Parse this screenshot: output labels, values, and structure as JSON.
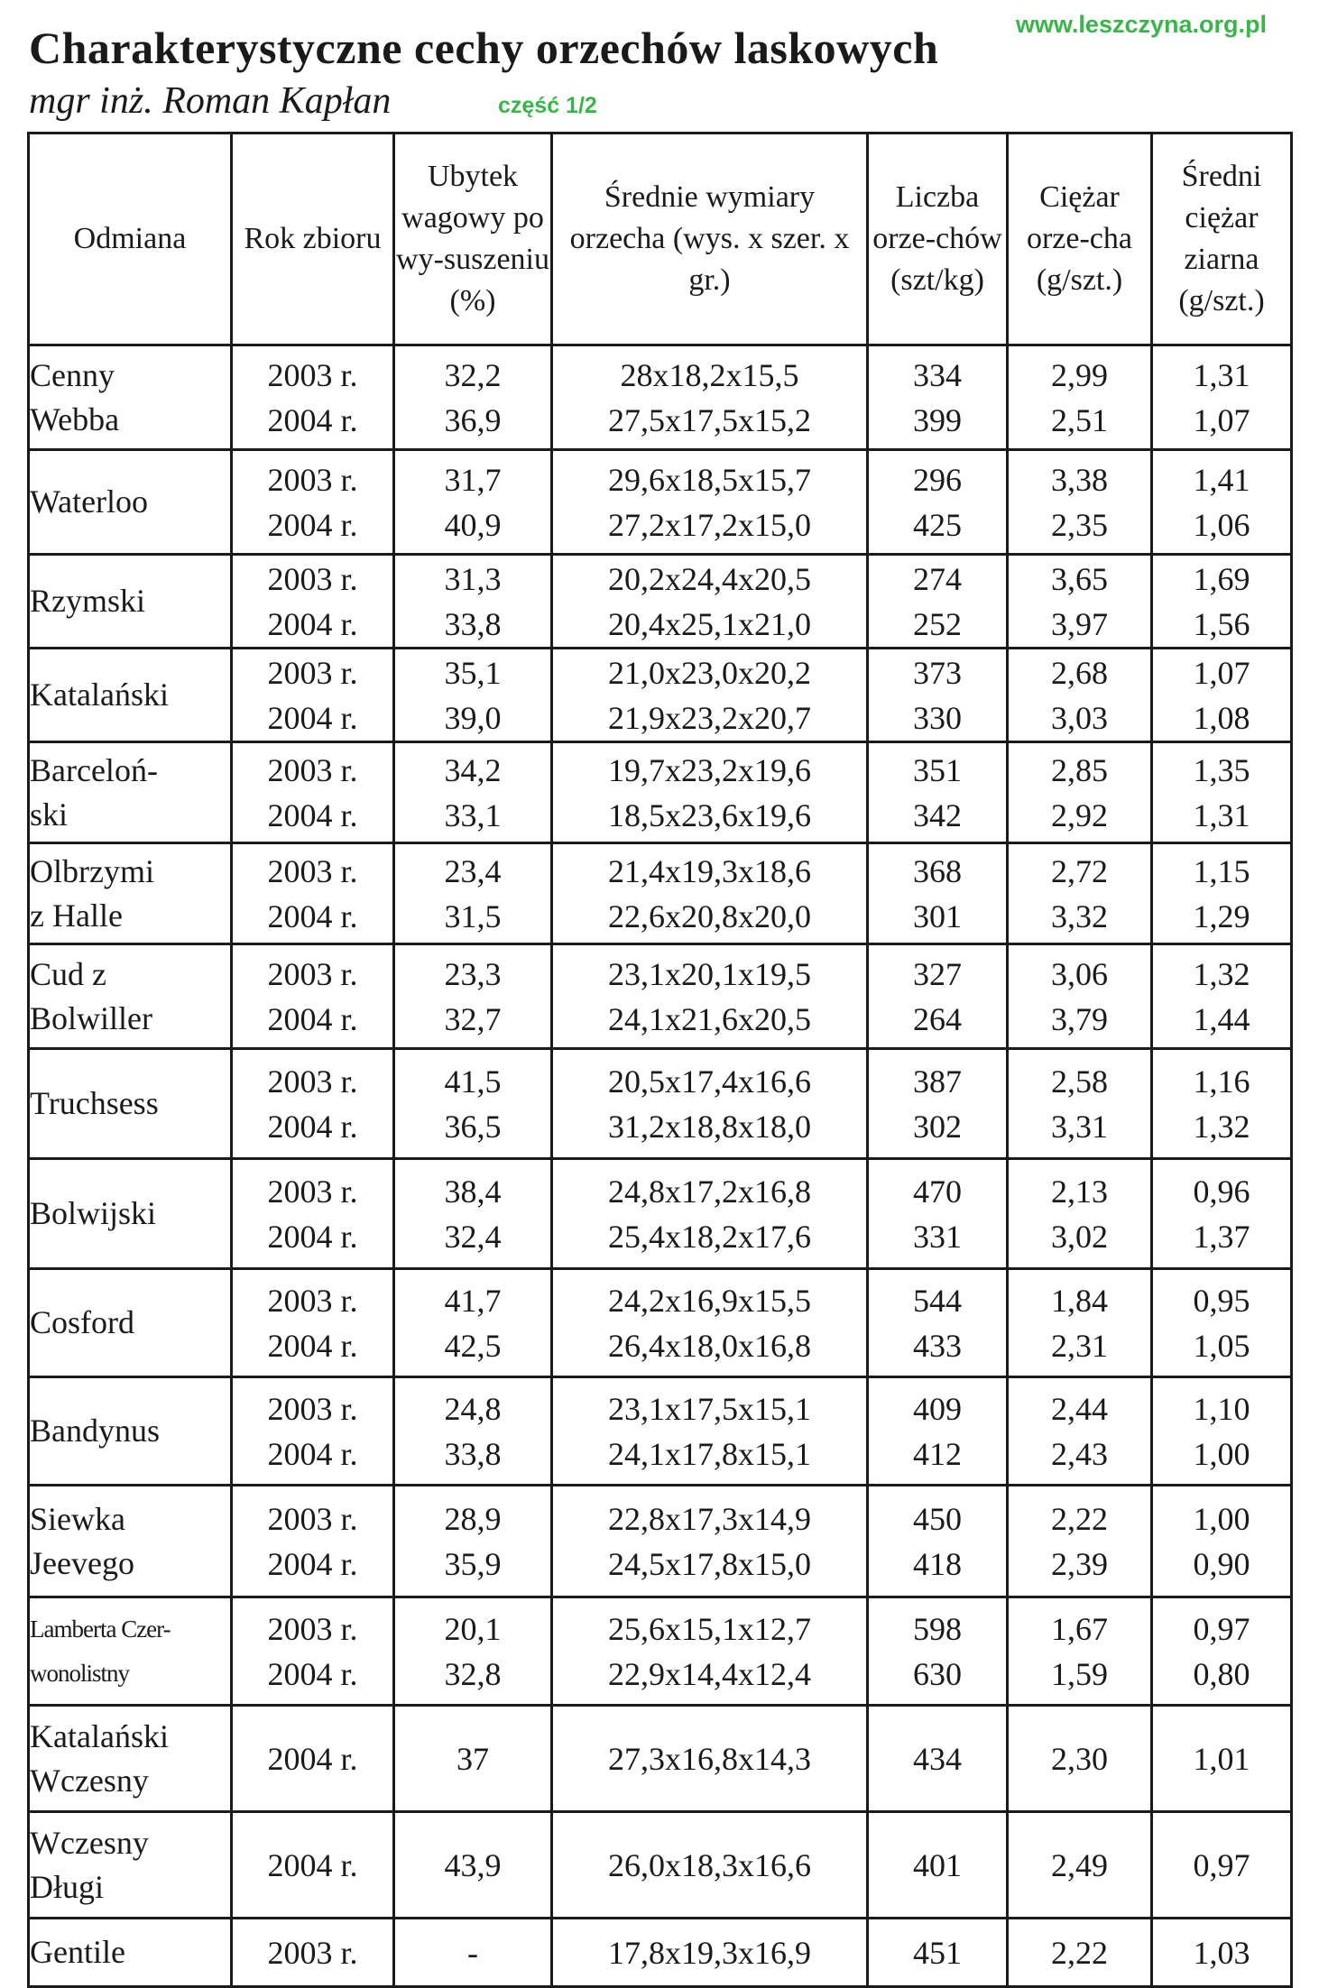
{
  "site": "www.leszczyna.org.pl",
  "title": "Charakterystyczne cechy orzechów laskowych",
  "author": "mgr inż. Roman Kapłan",
  "part": "część 1/2",
  "headers": {
    "variety": "Odmiana",
    "year": "Rok zbioru",
    "weight_loss": "Ubytek wagowy po wy-suszeniu (%)",
    "dimensions": "Średnie wymiary orzecha (wys. x szer. x gr.)",
    "count": "Liczba orze-chów (szt/kg)",
    "nut_weight": "Ciężar orze-cha (g/szt.)",
    "kernel_weight": "Średni ciężar ziarna (g/szt.)"
  },
  "rows": [
    {
      "variety": [
        "Cenny",
        "Webba"
      ],
      "year": [
        "2003 r.",
        "2004 r."
      ],
      "loss": [
        "32,2",
        "36,9"
      ],
      "dims": [
        "28x18,2x15,5",
        "27,5x17,5x15,2"
      ],
      "count": [
        "334",
        "399"
      ],
      "weight": [
        "2,99",
        "2,51"
      ],
      "kernel": [
        "1,31",
        "1,07"
      ]
    },
    {
      "variety": [
        "Waterloo"
      ],
      "year": [
        "2003 r.",
        "2004 r."
      ],
      "loss": [
        "31,7",
        "40,9"
      ],
      "dims": [
        "29,6x18,5x15,7",
        "27,2x17,2x15,0"
      ],
      "count": [
        "296",
        "425"
      ],
      "weight": [
        "3,38",
        "2,35"
      ],
      "kernel": [
        "1,41",
        "1,06"
      ]
    },
    {
      "variety": [
        "Rzymski"
      ],
      "year": [
        "2003 r.",
        "2004 r."
      ],
      "loss": [
        "31,3",
        "33,8"
      ],
      "dims": [
        "20,2x24,4x20,5",
        "20,4x25,1x21,0"
      ],
      "count": [
        "274",
        "252"
      ],
      "weight": [
        "3,65",
        "3,97"
      ],
      "kernel": [
        "1,69",
        "1,56"
      ]
    },
    {
      "variety": [
        "Katalański"
      ],
      "year": [
        "2003 r.",
        "2004 r."
      ],
      "loss": [
        "35,1",
        "39,0"
      ],
      "dims": [
        "21,0x23,0x20,2",
        "21,9x23,2x20,7"
      ],
      "count": [
        "373",
        "330"
      ],
      "weight": [
        "2,68",
        "3,03"
      ],
      "kernel": [
        "1,07",
        "1,08"
      ]
    },
    {
      "variety": [
        "Barceloń-",
        "ski"
      ],
      "year": [
        "2003 r.",
        "2004 r."
      ],
      "loss": [
        "34,2",
        "33,1"
      ],
      "dims": [
        "19,7x23,2x19,6",
        "18,5x23,6x19,6"
      ],
      "count": [
        "351",
        "342"
      ],
      "weight": [
        "2,85",
        "2,92"
      ],
      "kernel": [
        "1,35",
        "1,31"
      ]
    },
    {
      "variety": [
        "Olbrzymi",
        "z Halle"
      ],
      "year": [
        "2003 r.",
        "2004 r."
      ],
      "loss": [
        "23,4",
        "31,5"
      ],
      "dims": [
        "21,4x19,3x18,6",
        "22,6x20,8x20,0"
      ],
      "count": [
        "368",
        "301"
      ],
      "weight": [
        "2,72",
        "3,32"
      ],
      "kernel": [
        "1,15",
        "1,29"
      ]
    },
    {
      "variety": [
        "Cud z",
        "Bolwiller"
      ],
      "year": [
        "2003 r.",
        "2004 r."
      ],
      "loss": [
        "23,3",
        "32,7"
      ],
      "dims": [
        "23,1x20,1x19,5",
        "24,1x21,6x20,5"
      ],
      "count": [
        "327",
        "264"
      ],
      "weight": [
        "3,06",
        "3,79"
      ],
      "kernel": [
        "1,32",
        "1,44"
      ]
    },
    {
      "variety": [
        "Truchsess"
      ],
      "year": [
        "2003 r.",
        "2004 r."
      ],
      "loss": [
        "41,5",
        "36,5"
      ],
      "dims": [
        "20,5x17,4x16,6",
        "31,2x18,8x18,0"
      ],
      "count": [
        "387",
        "302"
      ],
      "weight": [
        "2,58",
        "3,31"
      ],
      "kernel": [
        "1,16",
        "1,32"
      ]
    },
    {
      "variety": [
        "Bolwijski"
      ],
      "year": [
        "2003 r.",
        "2004 r."
      ],
      "loss": [
        "38,4",
        "32,4"
      ],
      "dims": [
        "24,8x17,2x16,8",
        "25,4x18,2x17,6"
      ],
      "count": [
        "470",
        "331"
      ],
      "weight": [
        "2,13",
        "3,02"
      ],
      "kernel": [
        "0,96",
        "1,37"
      ]
    },
    {
      "variety": [
        "Cosford"
      ],
      "year": [
        "2003 r.",
        "2004 r."
      ],
      "loss": [
        "41,7",
        "42,5"
      ],
      "dims": [
        "24,2x16,9x15,5",
        "26,4x18,0x16,8"
      ],
      "count": [
        "544",
        "433"
      ],
      "weight": [
        "1,84",
        "2,31"
      ],
      "kernel": [
        "0,95",
        "1,05"
      ]
    },
    {
      "variety": [
        "Bandynus"
      ],
      "year": [
        "2003 r.",
        "2004 r."
      ],
      "loss": [
        "24,8",
        "33,8"
      ],
      "dims": [
        "23,1x17,5x15,1",
        "24,1x17,8x15,1"
      ],
      "count": [
        "409",
        "412"
      ],
      "weight": [
        "2,44",
        "2,43"
      ],
      "kernel": [
        "1,10",
        "1,00"
      ]
    },
    {
      "variety": [
        "Siewka",
        "Jeevego"
      ],
      "year": [
        "2003 r.",
        "2004 r."
      ],
      "loss": [
        "28,9",
        "35,9"
      ],
      "dims": [
        "22,8x17,3x14,9",
        "24,5x17,8x15,0"
      ],
      "count": [
        "450",
        "418"
      ],
      "weight": [
        "2,22",
        "2,39"
      ],
      "kernel": [
        "1,00",
        "0,90"
      ]
    },
    {
      "variety": [
        "Lamberta Czer-",
        "wonolistny"
      ],
      "small": true,
      "year": [
        "2003 r.",
        "2004 r."
      ],
      "loss": [
        "20,1",
        "32,8"
      ],
      "dims": [
        "25,6x15,1x12,7",
        "22,9x14,4x12,4"
      ],
      "count": [
        "598",
        "630"
      ],
      "weight": [
        "1,67",
        "1,59"
      ],
      "kernel": [
        "0,97",
        "0,80"
      ]
    },
    {
      "variety": [
        "Katalański",
        "Wczesny"
      ],
      "year": [
        "2004 r."
      ],
      "loss": [
        "37"
      ],
      "dims": [
        "27,3x16,8x14,3"
      ],
      "count": [
        "434"
      ],
      "weight": [
        "2,30"
      ],
      "kernel": [
        "1,01"
      ]
    },
    {
      "variety": [
        "Wczesny",
        "Długi"
      ],
      "year": [
        "2004 r."
      ],
      "loss": [
        "43,9"
      ],
      "dims": [
        "26,0x18,3x16,6"
      ],
      "count": [
        "401"
      ],
      "weight": [
        "2,49"
      ],
      "kernel": [
        "0,97"
      ]
    },
    {
      "variety": [
        "Gentile"
      ],
      "year": [
        "2003 r."
      ],
      "loss": [
        "-"
      ],
      "dims": [
        "17,8x19,3x16,9"
      ],
      "count": [
        "451"
      ],
      "weight": [
        "2,22"
      ],
      "kernel": [
        "1,03"
      ]
    }
  ]
}
